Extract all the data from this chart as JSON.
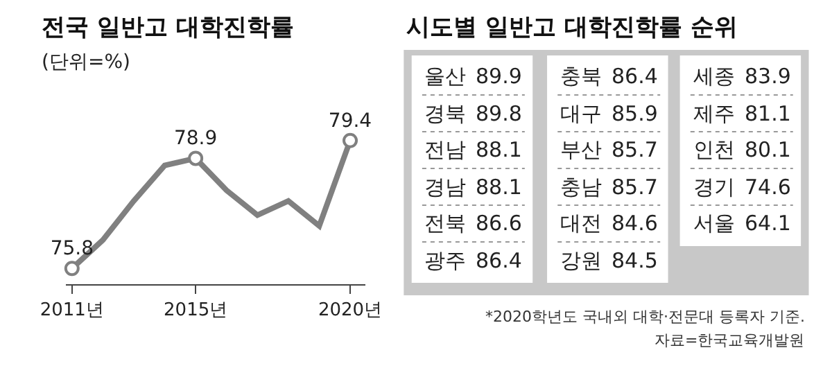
{
  "chart_data": [
    {
      "type": "line",
      "title": "전국 일반고 대학진학률",
      "subtitle": "(단위=%)",
      "x": [
        2011,
        2012,
        2013,
        2014,
        2015,
        2016,
        2017,
        2018,
        2019,
        2020
      ],
      "values": [
        75.8,
        76.6,
        77.7,
        78.7,
        78.9,
        78.0,
        77.3,
        77.7,
        77.0,
        79.4
      ],
      "value_labels": [
        "75.8",
        null,
        null,
        null,
        "78.9",
        null,
        null,
        null,
        null,
        "79.4"
      ],
      "color": "#808080",
      "line_style": "solid",
      "xlim": [
        2010.8,
        2020.5
      ],
      "xticks": [
        {
          "value": 2011,
          "label": "2011년"
        },
        {
          "value": 2015,
          "label": "2015년"
        },
        {
          "value": 2020,
          "label": "2020년"
        }
      ],
      "tick_labels": "x"
    },
    {
      "type": "other",
      "title": "시도별 일반고 대학진학률 순위",
      "categories": [
        "울산",
        "경북",
        "전남",
        "경남",
        "전북",
        "광주",
        "충북",
        "대구",
        "부산",
        "충남",
        "대전",
        "강원",
        "세종",
        "제주",
        "인천",
        "경기",
        "서울"
      ],
      "values": [
        89.9,
        89.8,
        88.1,
        88.1,
        86.6,
        86.4,
        86.4,
        85.9,
        85.7,
        85.7,
        84.6,
        84.5,
        83.9,
        81.1,
        80.1,
        74.6,
        64.1
      ],
      "data_labels": true,
      "annotations": [
        "*2020학년도 국내외 대학·전문대 등록자 기준.",
        "자료=한국교육개발원"
      ]
    }
  ]
}
